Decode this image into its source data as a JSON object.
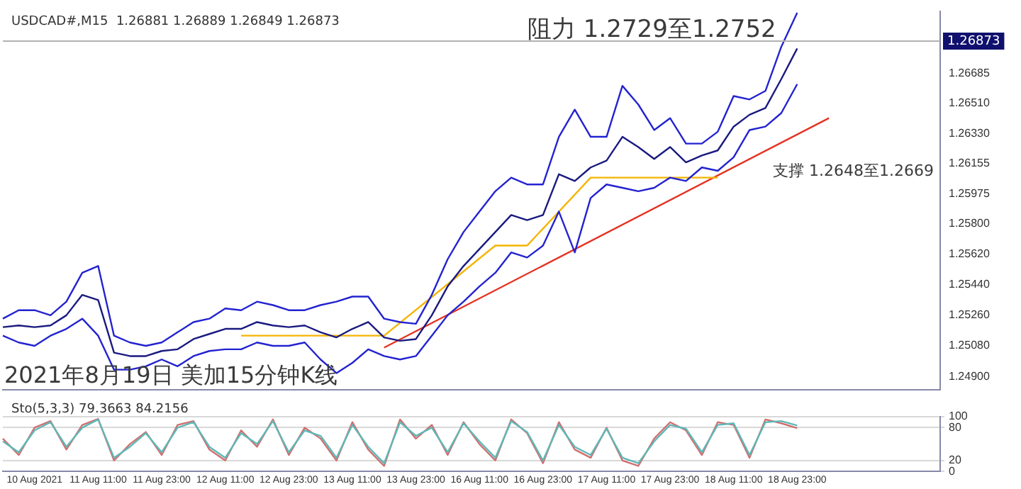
{
  "chart_data": [
    {
      "type": "line",
      "title": "USDCAD#,M15  1.26881 1.26889 1.26849 1.26873",
      "annotations": [
        "阻力 1.2729至1.2752",
        "支撑 1.2648至1.2669",
        "2021年8月19日 美加15分钟K线"
      ],
      "categories": [
        null,
        null,
        null,
        null,
        null,
        null,
        null,
        null,
        null,
        null,
        null,
        null,
        null,
        null,
        null,
        null,
        null,
        null,
        null,
        null,
        null,
        null,
        null,
        null,
        null,
        null,
        null,
        null,
        null,
        null,
        null,
        null,
        null,
        null,
        null,
        null,
        null,
        null,
        null,
        null,
        null,
        null,
        null,
        null,
        null,
        null,
        null,
        null,
        null,
        null,
        null,
        null,
        null,
        null,
        null,
        null,
        null,
        null,
        null,
        null
      ],
      "series": [
        {
          "color": "#2323d0",
          "values": [
            1.2524,
            1.2529,
            1.2529,
            1.2526,
            1.2534,
            1.2551,
            1.2555,
            1.2514,
            1.251,
            1.2508,
            1.251,
            1.2516,
            1.2522,
            1.2524,
            1.253,
            1.2529,
            1.2534,
            1.2532,
            1.2529,
            1.2529,
            1.2532,
            1.2534,
            1.2537,
            1.2537,
            1.2524,
            1.2522,
            1.2521,
            1.2538,
            1.2559,
            1.2575,
            1.2587,
            1.2599,
            1.2607,
            1.2603,
            1.2603,
            1.2631,
            1.2647,
            1.2631,
            1.2631,
            1.2661,
            1.265,
            1.2635,
            1.2642,
            1.2627,
            1.2627,
            1.2634,
            1.2655,
            1.2653,
            1.2658,
            1.2684,
            1.2704,
            null,
            null,
            null,
            null,
            null,
            null,
            null,
            null,
            null
          ]
        },
        {
          "color": "#1a1a80",
          "values": [
            1.2519,
            1.252,
            1.2519,
            1.252,
            1.2526,
            1.2538,
            1.2535,
            1.2504,
            1.2502,
            1.2502,
            1.2505,
            1.2506,
            1.2512,
            1.2515,
            1.2518,
            1.2518,
            1.2522,
            1.252,
            1.2519,
            1.252,
            1.2516,
            1.2513,
            1.2518,
            1.2522,
            1.2513,
            1.2511,
            1.2512,
            1.2526,
            1.2543,
            1.2555,
            1.2565,
            1.2575,
            1.2585,
            1.2582,
            1.2585,
            1.2609,
            1.2605,
            1.2613,
            1.2617,
            1.2631,
            1.2625,
            1.2618,
            1.2625,
            1.2616,
            1.262,
            1.2623,
            1.2637,
            1.2644,
            1.2648,
            1.2665,
            1.2683,
            null,
            null,
            null,
            null,
            null,
            null,
            null,
            null,
            null
          ]
        },
        {
          "color": "#2323d0",
          "values": [
            1.2514,
            1.251,
            1.2508,
            1.2514,
            1.2518,
            1.2524,
            1.2514,
            1.2494,
            1.2494,
            1.2496,
            1.25,
            1.2496,
            1.2502,
            1.2505,
            1.2506,
            1.2506,
            1.251,
            1.2508,
            1.2508,
            1.251,
            1.25,
            1.2492,
            1.2498,
            1.2506,
            1.2502,
            1.25,
            1.2502,
            1.2514,
            1.2526,
            1.2534,
            1.2543,
            1.2551,
            1.2563,
            1.256,
            1.2567,
            1.2587,
            1.2563,
            1.2595,
            1.2603,
            1.2601,
            1.2599,
            1.2601,
            1.2607,
            1.2605,
            1.2613,
            1.2611,
            1.2619,
            1.2635,
            1.2637,
            1.2645,
            1.2662,
            null,
            null,
            null,
            null,
            null,
            null,
            null,
            null,
            null
          ]
        },
        {
          "color": "#f5b400",
          "values": [
            null,
            null,
            null,
            null,
            null,
            null,
            null,
            null,
            null,
            null,
            null,
            null,
            null,
            null,
            null,
            1.2514,
            1.2514,
            1.2514,
            1.2514,
            1.2514,
            1.2514,
            1.2514,
            1.2514,
            1.2514,
            1.2514,
            null,
            null,
            null,
            null,
            null,
            null,
            1.2567,
            1.2567,
            1.2567,
            null,
            null,
            null,
            1.2607,
            1.2607,
            1.2607,
            1.2607,
            1.2607,
            1.2607,
            1.2607,
            1.2607,
            1.2607,
            null,
            null,
            null,
            null,
            null,
            null,
            null,
            null,
            null,
            null,
            null,
            null,
            null,
            null
          ]
        },
        {
          "color": "#e53222",
          "values": [
            null,
            null,
            null,
            null,
            null,
            null,
            null,
            null,
            null,
            null,
            null,
            null,
            null,
            null,
            null,
            null,
            null,
            null,
            null,
            null,
            null,
            null,
            null,
            null,
            1.2507,
            null,
            null,
            null,
            null,
            null,
            null,
            null,
            null,
            null,
            null,
            null,
            null,
            null,
            null,
            null,
            null,
            null,
            null,
            null,
            null,
            null,
            null,
            null,
            null,
            null,
            null,
            null,
            1.2642,
            null,
            null,
            null,
            null,
            null,
            null,
            null
          ]
        }
      ],
      "ylim": [
        1.2482,
        1.2705
      ],
      "yticks": [
        {
          "value": 1.249,
          "label": "1.24900"
        },
        {
          "value": 1.2508,
          "label": "1.25080"
        },
        {
          "value": 1.2526,
          "label": "1.25260"
        },
        {
          "value": 1.2544,
          "label": "1.25440"
        },
        {
          "value": 1.2562,
          "label": "1.25620"
        },
        {
          "value": 1.258,
          "label": "1.25800"
        },
        1.25975,
        1.26155,
        {
          "value": 1.2633,
          "label": "1.26330"
        },
        {
          "value": 1.2651,
          "label": "1.26510"
        },
        1.26685
      ],
      "ref_lines": [
        {
          "axis": "y",
          "value": 1.26873,
          "label": "1.26873",
          "color": "#b0b0b0"
        }
      ],
      "tick_labels": "y",
      "marker": "none"
    },
    {
      "type": "line",
      "title": "Sto(5,3,3) 79.3663 84.2156",
      "categories": [
        null,
        null,
        "10 Aug 2021",
        null,
        null,
        null,
        "11 Aug 11:00",
        null,
        null,
        null,
        "11 Aug 23:00",
        null,
        null,
        null,
        "12 Aug 11:00",
        null,
        null,
        null,
        "12 Aug 23:00",
        null,
        null,
        null,
        "13 Aug 11:00",
        null,
        null,
        null,
        "13 Aug 23:00",
        null,
        null,
        null,
        "16 Aug 11:00",
        null,
        null,
        null,
        "16 Aug 23:00",
        null,
        null,
        null,
        "17 Aug 11:00",
        null,
        null,
        null,
        "17 Aug 23:00",
        null,
        null,
        null,
        "18 Aug 11:00",
        null,
        null,
        null,
        "18 Aug 23:00",
        null,
        null,
        null,
        null,
        null,
        null,
        null,
        null,
        null
      ],
      "series": [
        {
          "color": "#5fb8b8",
          "values": [
            55,
            35,
            75,
            90,
            45,
            80,
            95,
            25,
            45,
            70,
            35,
            80,
            90,
            45,
            25,
            70,
            50,
            92,
            35,
            75,
            65,
            25,
            85,
            45,
            15,
            90,
            65,
            80,
            35,
            88,
            55,
            25,
            92,
            72,
            20,
            85,
            45,
            30,
            78,
            25,
            15,
            55,
            85,
            78,
            35,
            85,
            88,
            30,
            90,
            92,
            84,
            null,
            null,
            null,
            null,
            null,
            null,
            null,
            null,
            null
          ]
        },
        {
          "color": "#d07070",
          "values": [
            60,
            30,
            80,
            92,
            40,
            85,
            96,
            20,
            50,
            72,
            30,
            85,
            92,
            40,
            20,
            75,
            45,
            95,
            30,
            80,
            60,
            20,
            90,
            40,
            10,
            95,
            60,
            85,
            30,
            90,
            50,
            20,
            95,
            70,
            15,
            90,
            40,
            25,
            80,
            20,
            10,
            60,
            90,
            75,
            30,
            90,
            85,
            25,
            95,
            88,
            79,
            null,
            null,
            null,
            null,
            null,
            null,
            null,
            null,
            null
          ]
        }
      ],
      "ylim": [
        0,
        100
      ],
      "yticks": [
        0,
        20,
        80,
        100
      ],
      "grid": "y",
      "marker": "none"
    }
  ]
}
